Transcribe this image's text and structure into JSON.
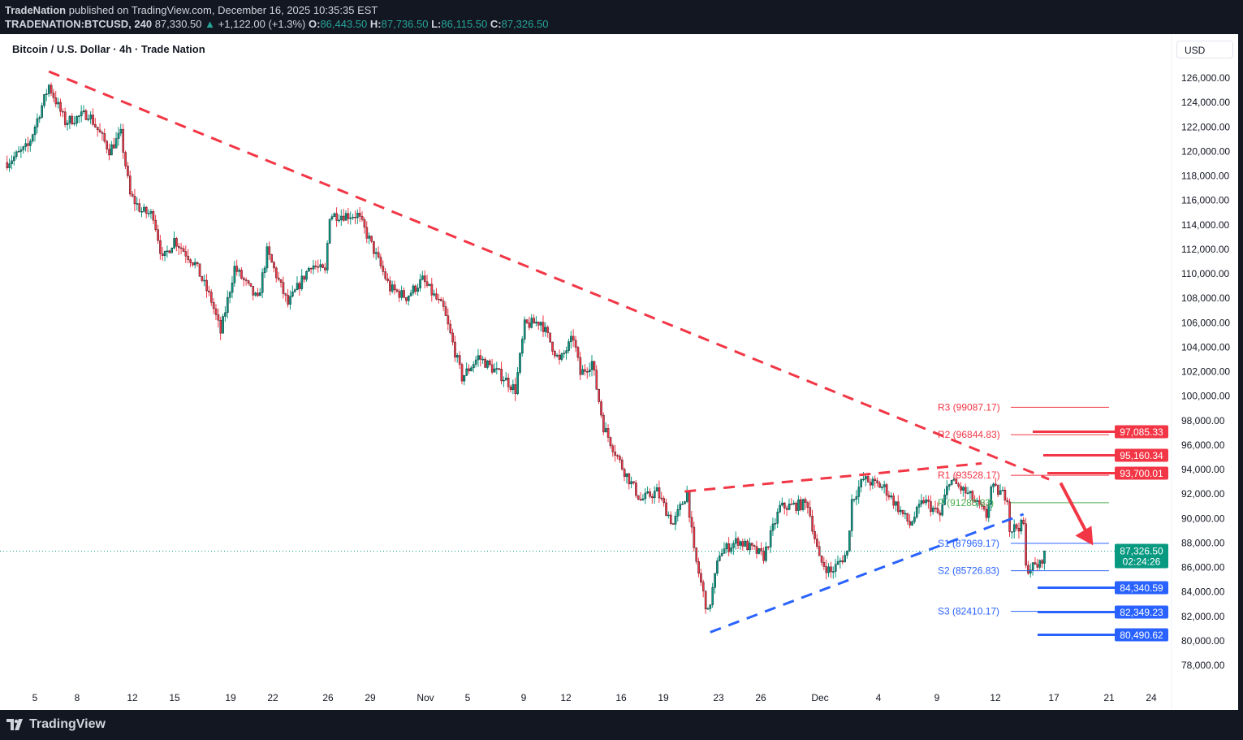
{
  "header": {
    "publisher": "TradeNation",
    "published_text": "published on TradingView.com, December 16, 2025 10:35:35 EST",
    "symbol": "TRADENATION:BTCUSD, 240",
    "last": "87,330.50",
    "change": "+1,122.00 (+1.3%)",
    "o_label": "O:",
    "o": "86,443.50",
    "h_label": "H:",
    "h": "87,736.50",
    "l_label": "L:",
    "l": "86,115.50",
    "c_label": "C:",
    "c": "87,326.50"
  },
  "chart_title": "Bitcoin / U.S. Dollar · 4h · Trade Nation",
  "currency_button": "USD",
  "footer": {
    "logo_text": "TradingView"
  },
  "colors": {
    "up": "#089981",
    "down": "#f23645",
    "resistance": "#f23645",
    "support": "#2962ff",
    "pivot": "#4caf50",
    "last_price": "#089981"
  },
  "chart_data": {
    "type": "candlestick",
    "interval": "4h",
    "ylim": [
      77000,
      127500
    ],
    "y_ticks": [
      "78,000.00",
      "80,000.00",
      "82,000.00",
      "84,000.00",
      "86,000.00",
      "88,000.00",
      "90,000.00",
      "92,000.00",
      "94,000.00",
      "96,000.00",
      "98,000.00",
      "100,000.00",
      "102,000.00",
      "104,000.00",
      "106,000.00",
      "108,000.00",
      "110,000.00",
      "112,000.00",
      "114,000.00",
      "116,000.00",
      "118,000.00",
      "120,000.00",
      "122,000.00",
      "124,000.00",
      "126,000.00"
    ],
    "x_ticks": [
      "5",
      "8",
      "12",
      "15",
      "19",
      "22",
      "26",
      "29",
      "Nov",
      "5",
      "9",
      "12",
      "16",
      "19",
      "23",
      "26",
      "Dec",
      "4",
      "9",
      "12",
      "17",
      "21",
      "24"
    ],
    "price_path_approx": [
      [
        "2025-10-03 00",
        119100
      ],
      [
        "2025-10-04 12",
        120400
      ],
      [
        "2025-10-06 00",
        125400
      ],
      [
        "2025-10-07 04",
        122400
      ],
      [
        "2025-10-08 20",
        123100
      ],
      [
        "2025-10-10 08",
        120100
      ],
      [
        "2025-10-11 04",
        121400
      ],
      [
        "2025-10-11 20",
        116400
      ],
      [
        "2025-10-12 16",
        115100
      ],
      [
        "2025-10-13 12",
        114800
      ],
      [
        "2025-10-14 04",
        111100
      ],
      [
        "2025-10-15 00",
        112800
      ],
      [
        "2025-10-16 12",
        110800
      ],
      [
        "2025-10-17 16",
        107800
      ],
      [
        "2025-10-18 08",
        105200
      ],
      [
        "2025-10-19 08",
        110500
      ],
      [
        "2025-10-21 00",
        107800
      ],
      [
        "2025-10-21 16",
        111800
      ],
      [
        "2025-10-23 04",
        107500
      ],
      [
        "2025-10-24 20",
        110800
      ],
      [
        "2025-10-25 20",
        110100
      ],
      [
        "2025-10-26 04",
        114800
      ],
      [
        "2025-10-28 04",
        114800
      ],
      [
        "2025-10-29 00",
        112800
      ],
      [
        "2025-10-30 12",
        108800
      ],
      [
        "2025-10-31 16",
        108100
      ],
      [
        "2025-11-01 20",
        109500
      ],
      [
        "2025-11-03 08",
        107100
      ],
      [
        "2025-11-04 16",
        101500
      ],
      [
        "2025-11-05 20",
        103200
      ],
      [
        "2025-11-07 16",
        101500
      ],
      [
        "2025-11-08 12",
        100500
      ],
      [
        "2025-11-09 04",
        105800
      ],
      [
        "2025-11-10 08",
        106100
      ],
      [
        "2025-11-11 16",
        102800
      ],
      [
        "2025-11-12 16",
        104800
      ],
      [
        "2025-11-13 04",
        101800
      ],
      [
        "2025-11-14 00",
        102800
      ],
      [
        "2025-11-14 20",
        97500
      ],
      [
        "2025-11-16 04",
        94200
      ],
      [
        "2025-11-17 12",
        91500
      ],
      [
        "2025-11-18 16",
        92200
      ],
      [
        "2025-11-19 20",
        89500
      ],
      [
        "2025-11-20 20",
        92200
      ],
      [
        "2025-11-21 08",
        87200
      ],
      [
        "2025-11-22 08",
        82200
      ],
      [
        "2025-11-23 04",
        87200
      ],
      [
        "2025-11-24 12",
        88200
      ],
      [
        "2025-11-26 08",
        86900
      ],
      [
        "2025-11-27 12",
        90900
      ],
      [
        "2025-11-29 12",
        91200
      ],
      [
        "2025-11-30 08",
        86600
      ],
      [
        "2025-12-01 04",
        85600
      ],
      [
        "2025-12-02 08",
        87200
      ],
      [
        "2025-12-02 16",
        91500
      ],
      [
        "2025-12-03 12",
        93200
      ],
      [
        "2025-12-05 00",
        92500
      ],
      [
        "2025-12-06 20",
        89500
      ],
      [
        "2025-12-07 20",
        91500
      ],
      [
        "2025-12-09 00",
        90200
      ],
      [
        "2025-12-09 16",
        93200
      ],
      [
        "2025-12-11 04",
        91800
      ],
      [
        "2025-12-12 08",
        90200
      ],
      [
        "2025-12-12 16",
        92500
      ],
      [
        "2025-12-13 20",
        91800
      ],
      [
        "2025-12-14 00",
        89100
      ],
      [
        "2025-12-15 00",
        89500
      ],
      [
        "2025-12-15 04",
        85900
      ],
      [
        "2025-12-16 04",
        86200
      ],
      [
        "2025-12-16 12",
        87326.5
      ]
    ],
    "last_price": {
      "value": 87326.5,
      "label": "87,326.50",
      "countdown": "02:24:26"
    },
    "pivots": [
      {
        "name": "R3",
        "label": "R3 (99087.17)",
        "value": 99087.17,
        "color": "#f23645"
      },
      {
        "name": "R2",
        "label": "R2 (96844.83)",
        "value": 96844.83,
        "color": "#f23645"
      },
      {
        "name": "R1",
        "label": "R1 (93528.17)",
        "value": 93528.17,
        "color": "#f23645"
      },
      {
        "name": "P",
        "label": "P (91285.83)",
        "value": 91285.83,
        "color": "#4caf50"
      },
      {
        "name": "S1",
        "label": "S1 (87969.17)",
        "value": 87969.17,
        "color": "#2962ff"
      },
      {
        "name": "S2",
        "label": "S2 (85726.83)",
        "value": 85726.83,
        "color": "#2962ff"
      },
      {
        "name": "S3",
        "label": "S3 (82410.17)",
        "value": 82410.17,
        "color": "#2962ff"
      }
    ],
    "levels": [
      {
        "value": 97085.33,
        "label": "97,085.33",
        "kind": "resistance"
      },
      {
        "value": 95160.34,
        "label": "95,160.34",
        "kind": "resistance"
      },
      {
        "value": 93700.01,
        "label": "93,700.01",
        "kind": "resistance"
      },
      {
        "value": 84340.59,
        "label": "84,340.59",
        "kind": "support"
      },
      {
        "value": 82349.23,
        "label": "82,349.23",
        "kind": "support"
      },
      {
        "value": 80490.62,
        "label": "80,490.62",
        "kind": "support"
      }
    ],
    "trendlines": [
      {
        "name": "downtrend",
        "color": "#f23645",
        "from": [
          "2025-10-06 00",
          126530
        ],
        "to": [
          "2025-12-16 20",
          93200
        ]
      },
      {
        "name": "wedge-upper",
        "color": "#f23645",
        "from": [
          "2025-11-20 16",
          92200
        ],
        "to": [
          "2025-12-12 00",
          94500
        ]
      },
      {
        "name": "wedge-lower",
        "color": "#2962ff",
        "from": [
          "2025-11-22 12",
          80700
        ],
        "to": [
          "2025-12-15 00",
          90350
        ]
      }
    ],
    "arrow": {
      "color": "#f23645",
      "from": [
        "2025-12-17 16",
        92900
      ],
      "to": [
        "2025-12-20 00",
        87800
      ]
    }
  }
}
